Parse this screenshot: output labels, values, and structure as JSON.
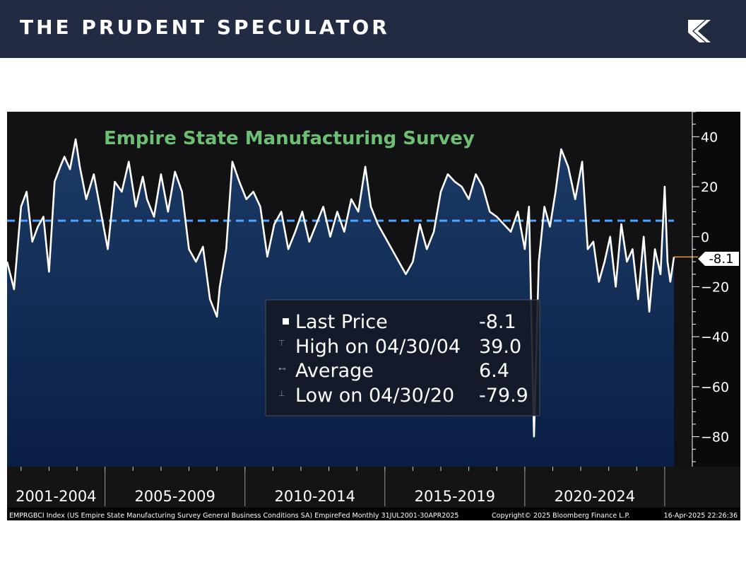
{
  "header": {
    "brand": "THE PRUDENT SPECULATOR",
    "logo_icon": "tps-logo-icon",
    "bg_color": "#232b42"
  },
  "chart_data": {
    "type": "area",
    "title": "Empire State Manufacturing Survey",
    "y_ticks": [
      40,
      20,
      0,
      -20,
      -40,
      -60,
      -80
    ],
    "ylim": [
      -92,
      50
    ],
    "x_range": [
      2001.5,
      2025.33
    ],
    "period_labels": [
      "2001-2004",
      "2005-2009",
      "2010-2014",
      "2015-2019",
      "2020-2024"
    ],
    "average": 6.4,
    "last_value": "-8.1",
    "legend": {
      "rows": [
        {
          "label": "Last Price",
          "value": "-8.1"
        },
        {
          "label": "High on 04/30/04",
          "value": "39.0"
        },
        {
          "label": "Average",
          "value": "6.4"
        },
        {
          "label": "Low on 04/30/20",
          "value": "-79.9"
        }
      ]
    },
    "footer_left": "EMPRGBCI Index (US Empire State Manufacturing Survey General Business Conditions SA) EmpireFed  Monthly 31JUL2001-30APR2025",
    "footer_mid": "Copyright© 2025 Bloomberg Finance L.P.",
    "footer_right": "16-Apr-2025 22:26:36",
    "colors": {
      "line": "#ffffff",
      "title": "#6cbf73",
      "average": "#4da3ff",
      "area_top": "#1c3b66",
      "area_bottom": "#0a1f44",
      "bg": "#121214"
    },
    "series": [
      {
        "name": "EMPRGBCI Index",
        "x": [
          2001.5,
          2001.75,
          2002.0,
          2002.2,
          2002.4,
          2002.6,
          2002.8,
          2003.0,
          2003.2,
          2003.4,
          2003.55,
          2003.75,
          2003.95,
          2004.1,
          2004.33,
          2004.6,
          2004.85,
          2005.1,
          2005.35,
          2005.6,
          2005.85,
          2006.1,
          2006.35,
          2006.5,
          2006.75,
          2007.0,
          2007.25,
          2007.5,
          2007.75,
          2008.0,
          2008.25,
          2008.5,
          2008.75,
          2009.0,
          2009.1,
          2009.33,
          2009.55,
          2009.8,
          2010.05,
          2010.3,
          2010.55,
          2010.8,
          2011.05,
          2011.3,
          2011.55,
          2011.8,
          2012.05,
          2012.3,
          2012.55,
          2012.8,
          2013.05,
          2013.3,
          2013.55,
          2013.8,
          2014.05,
          2014.3,
          2014.5,
          2014.75,
          2015.0,
          2015.25,
          2015.5,
          2015.75,
          2016.0,
          2016.25,
          2016.5,
          2016.75,
          2017.0,
          2017.25,
          2017.5,
          2017.75,
          2018.0,
          2018.25,
          2018.5,
          2018.75,
          2019.0,
          2019.25,
          2019.5,
          2019.75,
          2020.0,
          2020.15,
          2020.33,
          2020.5,
          2020.7,
          2020.9,
          2021.1,
          2021.3,
          2021.55,
          2021.8,
          2022.05,
          2022.25,
          2022.45,
          2022.65,
          2022.85,
          2023.05,
          2023.25,
          2023.45,
          2023.65,
          2023.85,
          2024.05,
          2024.25,
          2024.45,
          2024.65,
          2024.85,
          2025.0,
          2025.1,
          2025.2,
          2025.33
        ],
        "y": [
          -10,
          -21,
          12,
          18,
          -2,
          4,
          8,
          -14,
          22,
          28,
          32,
          27,
          39,
          28,
          15,
          25,
          10,
          -5,
          22,
          18,
          30,
          12,
          24,
          15,
          8,
          25,
          10,
          26,
          18,
          -5,
          -10,
          -4,
          -25,
          -32,
          -20,
          -5,
          30,
          22,
          15,
          18,
          12,
          -8,
          5,
          10,
          -5,
          2,
          10,
          -2,
          5,
          12,
          0,
          10,
          2,
          15,
          10,
          28,
          12,
          5,
          0,
          -5,
          -10,
          -15,
          -10,
          5,
          -5,
          2,
          18,
          25,
          22,
          20,
          15,
          25,
          20,
          10,
          8,
          5,
          2,
          10,
          -5,
          12,
          -79.9,
          -10,
          12,
          4,
          18,
          35,
          28,
          15,
          30,
          -5,
          -2,
          -18,
          -10,
          0,
          -20,
          5,
          -10,
          -5,
          -25,
          0,
          -30,
          -5,
          -15,
          20,
          -10,
          -18,
          -8.1
        ]
      }
    ]
  }
}
